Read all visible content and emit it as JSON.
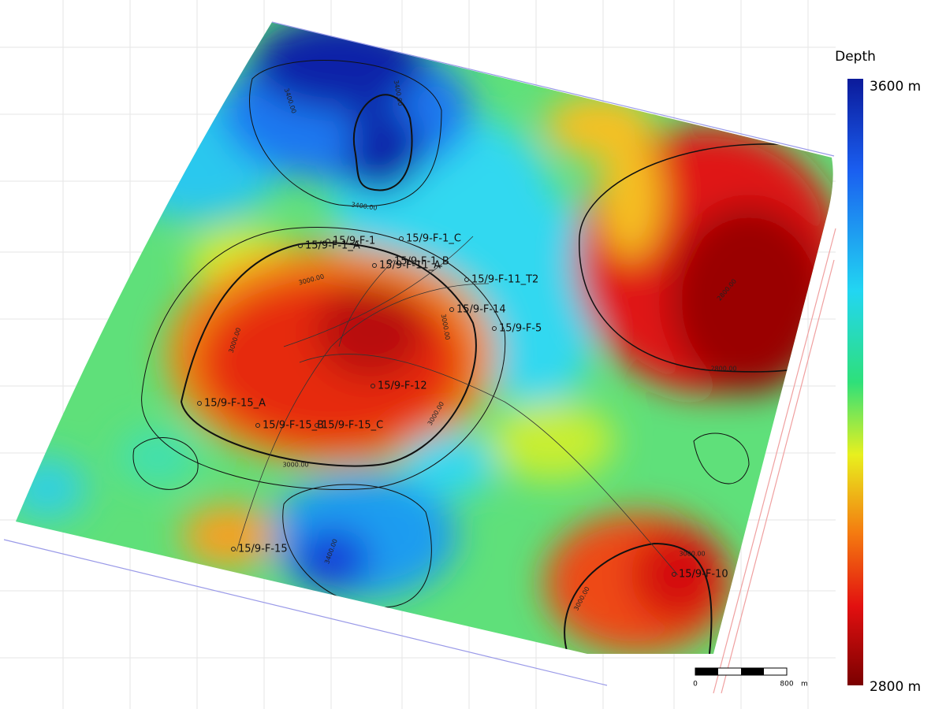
{
  "legend": {
    "title": "Depth",
    "top_label": "3600 m",
    "bottom_label": "2800 m"
  },
  "wells": [
    "15/9-F-1_A",
    "15/9-F-1",
    "15/9-F-1_C",
    "15/9-F-1_B",
    "15/9-F-11_A",
    "15/9-F-11_T2",
    "15/9-F-14",
    "15/9-F-5",
    "15/9-F-12",
    "15/9-F-15_A",
    "15/9-F-15_B",
    "15/9-F-15_C",
    "15/9-F-15",
    "15/9-F-10"
  ],
  "contour_labels": [
    "3400.00",
    "3400.00",
    "3400.00",
    "3000.00",
    "3000.00",
    "3000.00",
    "3000.00",
    "3000.00",
    "2800.00",
    "2800.00",
    "3000.00",
    "3000.00",
    "3400.00"
  ],
  "scale_bar": {
    "start": "0",
    "end": "800",
    "unit": "m"
  }
}
